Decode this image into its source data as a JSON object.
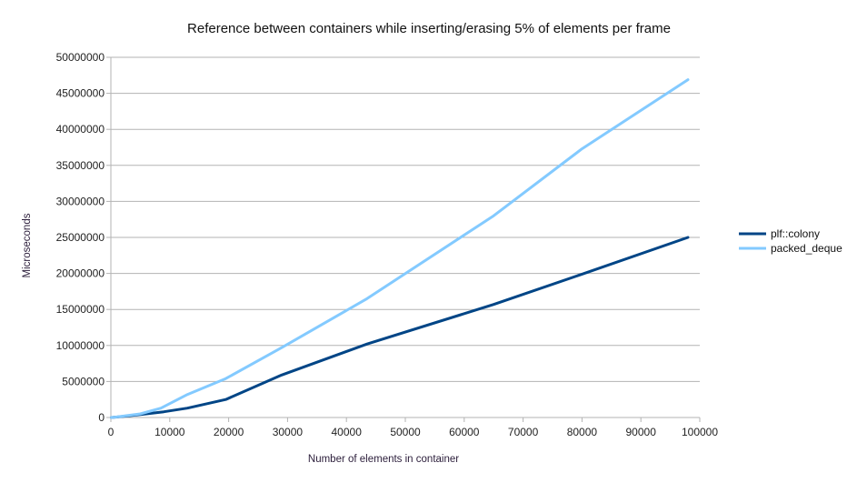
{
  "chart_data": {
    "type": "line",
    "title": "Reference between containers while inserting/erasing 5% of elements per frame",
    "xlabel": "Number of elements in container",
    "ylabel": "Microseconds",
    "xlim": [
      0,
      100000
    ],
    "ylim": [
      0,
      50000000
    ],
    "x_ticks": [
      "0",
      "10000",
      "20000",
      "30000",
      "40000",
      "50000",
      "60000",
      "70000",
      "80000",
      "90000",
      "100000"
    ],
    "y_ticks": [
      "0",
      "5000000",
      "10000000",
      "15000000",
      "20000000",
      "25000000",
      "30000000",
      "35000000",
      "40000000",
      "45000000",
      "50000000"
    ],
    "grid": "horizontal",
    "legend_position": "right",
    "series": [
      {
        "name": "plf::colony",
        "color": "#004586",
        "points": [
          [
            100,
            0
          ],
          [
            1000,
            60000
          ],
          [
            5000,
            400000
          ],
          [
            9000,
            800000
          ],
          [
            13000,
            1300000
          ],
          [
            19500,
            2500000
          ],
          [
            29000,
            5900000
          ],
          [
            43500,
            10200000
          ],
          [
            65000,
            15700000
          ],
          [
            80000,
            19900000
          ],
          [
            98000,
            25000000
          ]
        ]
      },
      {
        "name": "packed_deque",
        "color": "#83caff",
        "points": [
          [
            100,
            0
          ],
          [
            1000,
            80000
          ],
          [
            5000,
            500000
          ],
          [
            8500,
            1300000
          ],
          [
            13000,
            3200000
          ],
          [
            19500,
            5400000
          ],
          [
            29000,
            9700000
          ],
          [
            43500,
            16500000
          ],
          [
            65000,
            28000000
          ],
          [
            80000,
            37300000
          ],
          [
            98000,
            46900000
          ]
        ]
      }
    ]
  }
}
